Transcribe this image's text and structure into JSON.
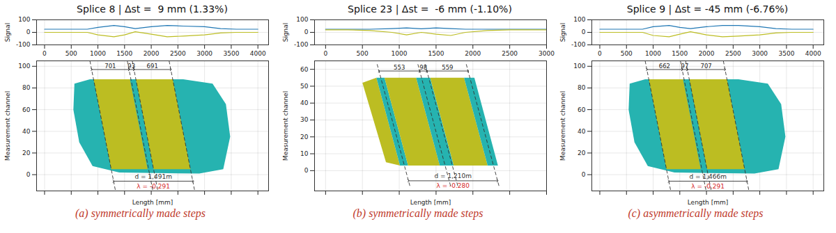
{
  "chart_data": [
    {
      "type": "composite",
      "title": "Splice 8 | Δst =  9 mm (1.33%)",
      "caption": "(a) symmetrically made steps",
      "signal": {
        "type": "line",
        "ylabel": "Signal",
        "grid": true,
        "x": [
          0,
          500,
          800,
          1000,
          1300,
          1500,
          1700,
          2000,
          2300,
          2600,
          3000,
          3300,
          3600,
          4000
        ],
        "series": [
          {
            "color": "#1f77b4",
            "values": [
              25,
              25,
              25,
              40,
              55,
              45,
              30,
              45,
              55,
              50,
              45,
              30,
              25,
              25
            ]
          },
          {
            "color": "#bcbd22",
            "values": [
              0,
              0,
              0,
              -20,
              -35,
              -20,
              5,
              -15,
              -35,
              -30,
              -20,
              -5,
              0,
              0
            ]
          }
        ],
        "xlim": [
          -150,
          4200
        ],
        "xticks": [
          0,
          500,
          1000,
          1500,
          2000,
          2500,
          3000,
          3500,
          4000
        ],
        "ylim": [
          -100,
          100
        ],
        "yticks": [
          -100,
          0,
          100
        ]
      },
      "map": {
        "type": "area",
        "xlabel": "Length [mm]",
        "ylabel": "Measurement channel",
        "grid": true,
        "tick_labels": "y",
        "xlim": [
          -150,
          4200
        ],
        "xticks": [
          0,
          500,
          1000,
          1500,
          2000,
          2500,
          3000,
          3500,
          4000
        ],
        "ylim": [
          -15,
          105
        ],
        "yticks": [
          0,
          20,
          40,
          60,
          80,
          100
        ],
        "regions": [
          {
            "color": "#26b3b0",
            "points": [
              [
                560,
                84
              ],
              [
                850,
                88
              ],
              [
                2600,
                88
              ],
              [
                3150,
                84
              ],
              [
                3400,
                65
              ],
              [
                3480,
                35
              ],
              [
                3350,
                5
              ],
              [
                2900,
                1
              ],
              [
                1400,
                2
              ],
              [
                900,
                8
              ],
              [
                650,
                30
              ],
              [
                540,
                60
              ]
            ]
          },
          {
            "color": "#bcbd22",
            "points": [
              [
                918,
                88
              ],
              [
                1600,
                88
              ],
              [
                1932,
                5
              ],
              [
                1250,
                5
              ]
            ]
          },
          {
            "color": "#bcbd22",
            "points": [
              [
                1712,
                88
              ],
              [
                2403,
                88
              ],
              [
                2735,
                5
              ],
              [
                2044,
                5
              ]
            ]
          }
        ],
        "lines": {
          "line_style": "dashed",
          "color": "#333333",
          "segments": [
            [
              [
                850,
                105
              ],
              [
                1330,
                -15
              ]
            ],
            [
              [
                1551,
                105
              ],
              [
                2031,
                -15
              ]
            ],
            [
              [
                1644,
                105
              ],
              [
                2124,
                -15
              ]
            ],
            [
              [
                2335,
                105
              ],
              [
                2815,
                -15
              ]
            ]
          ]
        },
        "spans": [
          {
            "x1": 882,
            "x2": 1583,
            "y": 97,
            "label": "701"
          },
          {
            "x1": 1583,
            "x2": 1676,
            "y": 97,
            "label": "93"
          },
          {
            "x1": 1676,
            "x2": 2367,
            "y": 97,
            "label": "691"
          },
          {
            "x1": 1294,
            "x2": 2785,
            "y": -6,
            "label": ""
          }
        ],
        "labels": [
          {
            "x": 2040,
            "y": -2,
            "text": "d = 1,491m",
            "color": "#333333"
          },
          {
            "x": 2040,
            "y": -11,
            "text": "λ = -0.291",
            "color": "#d62728"
          }
        ]
      }
    },
    {
      "type": "composite",
      "title": "Splice 23 | Δst =  -6 mm (-1.10%)",
      "caption": "(b) symmetrically made steps",
      "signal": {
        "type": "line",
        "ylabel": "Signal",
        "grid": true,
        "x": [
          0,
          300,
          600,
          900,
          1100,
          1300,
          1500,
          1700,
          1900,
          2200,
          2500,
          3000
        ],
        "series": [
          {
            "color": "#1f77b4",
            "values": [
              25,
              25,
              25,
              30,
              35,
              28,
              35,
              30,
              25,
              25,
              25,
              25
            ]
          },
          {
            "color": "#bcbd22",
            "values": [
              20,
              20,
              15,
              0,
              -20,
              0,
              -15,
              -25,
              0,
              15,
              20,
              20
            ]
          }
        ],
        "xlim": [
          -150,
          3000
        ],
        "xticks": [
          0,
          500,
          1000,
          1500,
          2000,
          2500,
          3000
        ],
        "ylim": [
          -100,
          100
        ],
        "yticks": [
          -100,
          0,
          100
        ]
      },
      "map": {
        "type": "area",
        "xlabel": "Length [mm]",
        "ylabel": "Measurement channel",
        "grid": true,
        "tick_labels": "y",
        "xlim": [
          -150,
          3000
        ],
        "xticks": [
          0,
          500,
          1000,
          1500,
          2000,
          2500,
          3000
        ],
        "ylim": [
          -12,
          65
        ],
        "yticks": [
          0,
          10,
          20,
          30,
          40,
          50,
          60
        ],
        "regions": [
          {
            "color": "#bcbd22",
            "points": [
              [
                500,
                52
              ],
              [
                690,
                55
              ],
              [
                1010,
                3
              ],
              [
                820,
                5
              ]
            ]
          },
          {
            "color": "#26b3b0",
            "points": [
              [
                690,
                55
              ],
              [
                800,
                55
              ],
              [
                1120,
                3
              ],
              [
                1010,
                3
              ]
            ]
          },
          {
            "color": "#bcbd22",
            "points": [
              [
                800,
                55
              ],
              [
                1230,
                55
              ],
              [
                1550,
                3
              ],
              [
                1120,
                3
              ]
            ]
          },
          {
            "color": "#26b3b0",
            "points": [
              [
                1230,
                55
              ],
              [
                1420,
                55
              ],
              [
                1740,
                3
              ],
              [
                1550,
                3
              ]
            ]
          },
          {
            "color": "#bcbd22",
            "points": [
              [
                1420,
                55
              ],
              [
                1880,
                55
              ],
              [
                2200,
                3
              ],
              [
                1740,
                3
              ]
            ]
          },
          {
            "color": "#26b3b0",
            "points": [
              [
                1880,
                55
              ],
              [
                2020,
                55
              ],
              [
                2340,
                3
              ],
              [
                2200,
                3
              ]
            ]
          }
        ],
        "lines": {
          "line_style": "dashed",
          "color": "#333333",
          "segments": [
            [
              [
                700,
                63
              ],
              [
                1150,
                -10
              ]
            ],
            [
              [
                1253,
                63
              ],
              [
                1703,
                -10
              ]
            ],
            [
              [
                1351,
                63
              ],
              [
                1801,
                -10
              ]
            ],
            [
              [
                1910,
                63
              ],
              [
                2360,
                -10
              ]
            ]
          ]
        },
        "spans": [
          {
            "x1": 725,
            "x2": 1278,
            "y": 59,
            "label": "553"
          },
          {
            "x1": 1278,
            "x2": 1376,
            "y": 59,
            "label": "98"
          },
          {
            "x1": 1376,
            "x2": 1935,
            "y": 59,
            "label": "559"
          },
          {
            "x1": 1125,
            "x2": 2335,
            "y": -6,
            "label": ""
          }
        ],
        "labels": [
          {
            "x": 1730,
            "y": -3,
            "text": "d = 1,210m",
            "color": "#333333"
          },
          {
            "x": 1730,
            "y": -9,
            "text": "λ = -0.280",
            "color": "#d62728"
          }
        ]
      }
    },
    {
      "type": "composite",
      "title": "Splice 9 | Δst = -45 mm (-6.76%)",
      "caption": "(c) asymmetrically made steps",
      "signal": {
        "type": "line",
        "ylabel": "Signal",
        "grid": true,
        "x": [
          0,
          500,
          800,
          1000,
          1300,
          1500,
          1700,
          2000,
          2300,
          2600,
          3000,
          3300,
          3600,
          4000
        ],
        "series": [
          {
            "color": "#1f77b4",
            "values": [
              25,
              25,
              25,
              45,
              55,
              40,
              30,
              45,
              55,
              55,
              45,
              30,
              25,
              25
            ]
          },
          {
            "color": "#bcbd22",
            "values": [
              0,
              0,
              0,
              -25,
              -35,
              -15,
              5,
              -20,
              -35,
              -30,
              -20,
              -5,
              0,
              0
            ]
          }
        ],
        "xlim": [
          -150,
          4200
        ],
        "xticks": [
          0,
          500,
          1000,
          1500,
          2000,
          2500,
          3000,
          3500,
          4000
        ],
        "ylim": [
          -100,
          100
        ],
        "yticks": [
          -100,
          0,
          100
        ]
      },
      "map": {
        "type": "area",
        "xlabel": "Length [mm]",
        "ylabel": "Measurement channel",
        "grid": true,
        "tick_labels": "y",
        "xlim": [
          -150,
          4200
        ],
        "xticks": [
          0,
          500,
          1000,
          1500,
          2000,
          2500,
          3000,
          3500,
          4000
        ],
        "ylim": [
          -15,
          105
        ],
        "yticks": [
          0,
          20,
          40,
          60,
          80,
          100
        ],
        "regions": [
          {
            "color": "#26b3b0",
            "points": [
              [
                560,
                84
              ],
              [
                850,
                88
              ],
              [
                2600,
                88
              ],
              [
                3150,
                84
              ],
              [
                3400,
                65
              ],
              [
                3480,
                35
              ],
              [
                3350,
                5
              ],
              [
                2900,
                1
              ],
              [
                1400,
                2
              ],
              [
                900,
                8
              ],
              [
                650,
                30
              ],
              [
                540,
                60
              ]
            ]
          },
          {
            "color": "#bcbd22",
            "points": [
              [
                918,
                88
              ],
              [
                1560,
                88
              ],
              [
                1892,
                5
              ],
              [
                1250,
                5
              ]
            ]
          },
          {
            "color": "#bcbd22",
            "points": [
              [
                1680,
                88
              ],
              [
                2384,
                88
              ],
              [
                2716,
                5
              ],
              [
                2012,
                5
              ]
            ]
          }
        ],
        "lines": {
          "line_style": "dashed",
          "color": "#333333",
          "segments": [
            [
              [
                850,
                105
              ],
              [
                1330,
                -15
              ]
            ],
            [
              [
                1512,
                105
              ],
              [
                1992,
                -15
              ]
            ],
            [
              [
                1609,
                105
              ],
              [
                2089,
                -15
              ]
            ],
            [
              [
                2316,
                105
              ],
              [
                2796,
                -15
              ]
            ]
          ]
        },
        "spans": [
          {
            "x1": 882,
            "x2": 1544,
            "y": 97,
            "label": "662"
          },
          {
            "x1": 1544,
            "x2": 1641,
            "y": 97,
            "label": "97"
          },
          {
            "x1": 1641,
            "x2": 2348,
            "y": 97,
            "label": "707"
          },
          {
            "x1": 1294,
            "x2": 2760,
            "y": -6,
            "label": ""
          }
        ],
        "labels": [
          {
            "x": 2027,
            "y": -2,
            "text": "d = 1,466m",
            "color": "#333333"
          },
          {
            "x": 2027,
            "y": -11,
            "text": "λ = -0.291",
            "color": "#d62728"
          }
        ]
      }
    }
  ]
}
